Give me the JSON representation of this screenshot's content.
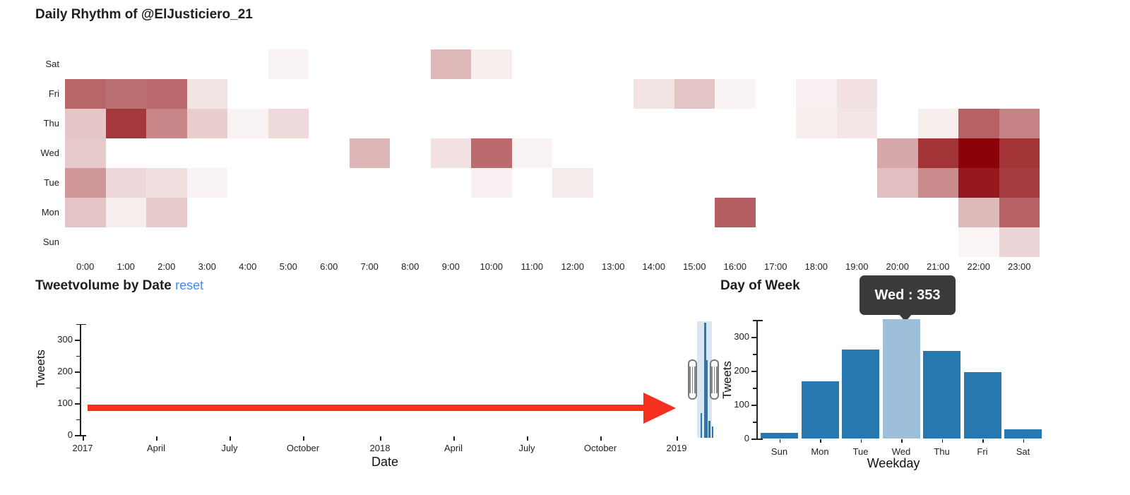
{
  "accent_colors": {
    "heat_low": "#fdfafa",
    "heat_high": "#8b0308",
    "bar_blue": "#2878b0",
    "bar_highlight": "#9dbfda",
    "brush_band": "#d9e7f5",
    "spike_blue": "#2b77ae",
    "arrow_red": "#f5301d",
    "link_blue": "#3e8df5",
    "tooltip_bg": "#3a3a3a"
  },
  "chart_data": [
    {
      "type": "heatmap",
      "title": "Daily Rhythm of @ElJusticiero_21",
      "rows_top_to_bottom": [
        "Sat",
        "Fri",
        "Thu",
        "Wed",
        "Tue",
        "Mon",
        "Sun"
      ],
      "columns": [
        "0:00",
        "1:00",
        "2:00",
        "3:00",
        "4:00",
        "5:00",
        "6:00",
        "7:00",
        "8:00",
        "9:00",
        "10:00",
        "11:00",
        "12:00",
        "13:00",
        "14:00",
        "15:00",
        "16:00",
        "17:00",
        "18:00",
        "19:00",
        "20:00",
        "21:00",
        "22:00",
        "23:00"
      ],
      "scale": {
        "min_color": "#fdfafa",
        "max_color": "#8b0308",
        "note": "intensity 0-1 relative to max cell (Wed 22:00)"
      },
      "cells": [
        [
          "Sat",
          5,
          0.03
        ],
        [
          "Sat",
          9,
          0.27
        ],
        [
          "Sat",
          10,
          0.05
        ],
        [
          "Fri",
          0,
          0.6
        ],
        [
          "Fri",
          1,
          0.56
        ],
        [
          "Fri",
          2,
          0.58
        ],
        [
          "Fri",
          3,
          0.09
        ],
        [
          "Fri",
          14,
          0.09
        ],
        [
          "Fri",
          15,
          0.21
        ],
        [
          "Fri",
          16,
          0.03
        ],
        [
          "Fri",
          18,
          0.04
        ],
        [
          "Fri",
          19,
          0.1
        ],
        [
          "Thu",
          0,
          0.21
        ],
        [
          "Thu",
          1,
          0.78
        ],
        [
          "Thu",
          2,
          0.47
        ],
        [
          "Thu",
          3,
          0.18
        ],
        [
          "Thu",
          4,
          0.03
        ],
        [
          "Thu",
          5,
          0.13
        ],
        [
          "Thu",
          18,
          0.05
        ],
        [
          "Thu",
          19,
          0.08
        ],
        [
          "Thu",
          21,
          0.05
        ],
        [
          "Thu",
          22,
          0.62
        ],
        [
          "Thu",
          23,
          0.48
        ],
        [
          "Wed",
          0,
          0.2
        ],
        [
          "Wed",
          7,
          0.28
        ],
        [
          "Wed",
          9,
          0.1
        ],
        [
          "Wed",
          10,
          0.58
        ],
        [
          "Wed",
          11,
          0.03
        ],
        [
          "Wed",
          20,
          0.33
        ],
        [
          "Wed",
          21,
          0.8
        ],
        [
          "Wed",
          22,
          1.0
        ],
        [
          "Wed",
          23,
          0.8
        ],
        [
          "Tue",
          0,
          0.4
        ],
        [
          "Tue",
          1,
          0.14
        ],
        [
          "Tue",
          2,
          0.11
        ],
        [
          "Tue",
          3,
          0.03
        ],
        [
          "Tue",
          10,
          0.04
        ],
        [
          "Tue",
          12,
          0.06
        ],
        [
          "Tue",
          20,
          0.24
        ],
        [
          "Tue",
          21,
          0.45
        ],
        [
          "Tue",
          22,
          0.91
        ],
        [
          "Tue",
          23,
          0.77
        ],
        [
          "Mon",
          0,
          0.22
        ],
        [
          "Mon",
          1,
          0.05
        ],
        [
          "Mon",
          2,
          0.19
        ],
        [
          "Mon",
          16,
          0.63
        ],
        [
          "Mon",
          22,
          0.26
        ],
        [
          "Mon",
          23,
          0.62
        ],
        [
          "Sun",
          22,
          0.02
        ],
        [
          "Sun",
          23,
          0.15
        ]
      ]
    },
    {
      "type": "line",
      "title": "Tweetvolume by Date",
      "reset_label": "reset",
      "xlabel": "Date",
      "ylabel": "Tweets",
      "ylim": [
        0,
        350
      ],
      "y_ticks": [
        0,
        100,
        200,
        300
      ],
      "y_minor_step": 50,
      "x_ticks": [
        "2017",
        "April",
        "July",
        "October",
        "2018",
        "April",
        "July",
        "October",
        "2019"
      ],
      "points": [
        {
          "x": "2017",
          "tweets": 0
        },
        {
          "x": "2017-04",
          "tweets": 0
        },
        {
          "x": "2017-07",
          "tweets": 0
        },
        {
          "x": "2017-10",
          "tweets": 0
        },
        {
          "x": "2018",
          "tweets": 0
        },
        {
          "x": "2018-04",
          "tweets": 0
        },
        {
          "x": "2018-07",
          "tweets": 0
        },
        {
          "x": "2018-10",
          "tweets": 0
        },
        {
          "x": "2019",
          "tweets": 350
        },
        {
          "x": "2019-02",
          "tweets": 40
        }
      ],
      "brush_selection": {
        "around": "2019",
        "note": "light blue band with drag handles over early-2019 spike"
      },
      "annotation_arrow": {
        "direction": "right",
        "color": "#f5301d"
      }
    },
    {
      "type": "bar",
      "title": "Day of Week",
      "xlabel": "Weekday",
      "ylabel": "Tweets",
      "categories": [
        "Sun",
        "Mon",
        "Tue",
        "Wed",
        "Thu",
        "Fri",
        "Sat"
      ],
      "values": [
        16,
        168,
        262,
        353,
        259,
        196,
        27
      ],
      "ylim": [
        0,
        353
      ],
      "y_ticks": [
        0,
        100,
        200,
        300
      ],
      "y_minor_step": 50,
      "highlight_category": "Wed",
      "bar_color": "#2878b0",
      "highlight_color": "#9dbfda",
      "tooltip": {
        "text": "Wed : 353",
        "bg": "#3a3a3a",
        "text_color": "#ffffff"
      }
    }
  ]
}
